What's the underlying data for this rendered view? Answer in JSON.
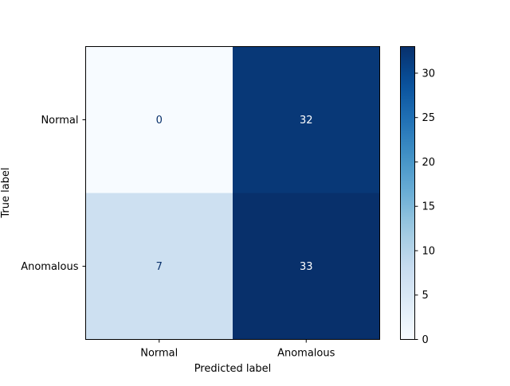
{
  "chart_data": {
    "type": "heatmap",
    "title": "",
    "xlabel": "Predicted label",
    "ylabel": "True label",
    "x_categories": [
      "Normal",
      "Anomalous"
    ],
    "y_categories": [
      "Normal",
      "Anomalous"
    ],
    "values": [
      [
        0,
        32
      ],
      [
        7,
        33
      ]
    ],
    "colormap": "Blues",
    "colorbar": {
      "range": [
        0,
        33
      ],
      "ticks": [
        0,
        5,
        10,
        15,
        20,
        25,
        30
      ]
    },
    "grid": false
  }
}
